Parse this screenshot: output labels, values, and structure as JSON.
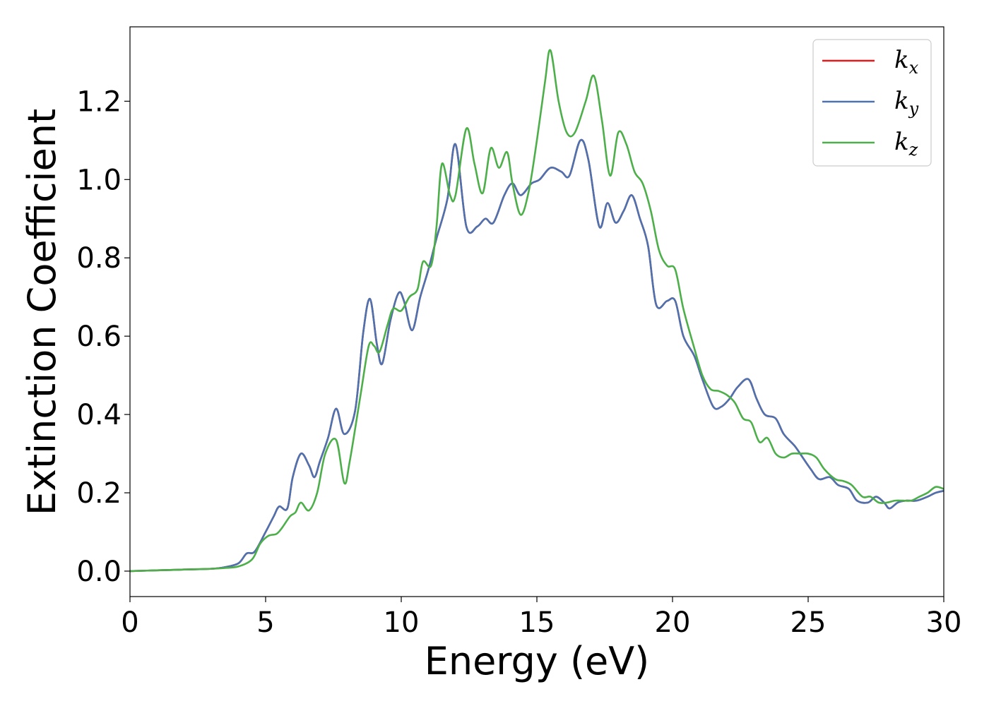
{
  "chart_data": {
    "type": "line",
    "xlabel": "Energy (eV)",
    "ylabel": "Extinction Coefficient",
    "xlim": [
      0,
      30
    ],
    "ylim": [
      -0.065,
      1.39
    ],
    "xticks": [
      0,
      5,
      10,
      15,
      20,
      25,
      30
    ],
    "yticks": [
      0.0,
      0.2,
      0.4,
      0.6,
      0.8,
      1.0,
      1.2
    ],
    "grid": false,
    "legend_position": "top-right",
    "series": [
      {
        "name": "k_x",
        "label_base": "k",
        "label_sub": "x",
        "color": "#e41a1c",
        "x": [
          0,
          1,
          2,
          3,
          3.5,
          4,
          4.3,
          4.6,
          5,
          5.3,
          5.5,
          5.8,
          6.0,
          6.3,
          6.6,
          6.8,
          7.0,
          7.3,
          7.6,
          7.9,
          8.3,
          8.6,
          8.85,
          9.1,
          9.3,
          9.6,
          9.9,
          10.1,
          10.4,
          10.7,
          11.0,
          11.3,
          11.7,
          12.0,
          12.4,
          12.8,
          13.1,
          13.4,
          13.8,
          14.1,
          14.4,
          14.8,
          15.1,
          15.5,
          15.9,
          16.2,
          16.6,
          16.9,
          17.3,
          17.6,
          17.9,
          18.2,
          18.5,
          18.8,
          19.1,
          19.4,
          19.8,
          20.1,
          20.4,
          20.8,
          21.1,
          21.5,
          21.8,
          22.1,
          22.4,
          22.8,
          23.1,
          23.4,
          23.8,
          24.1,
          24.5,
          24.8,
          25.1,
          25.4,
          25.8,
          26.1,
          26.5,
          26.8,
          27.2,
          27.5,
          27.8,
          28.0,
          28.3,
          28.6,
          29.0,
          29.4,
          29.7,
          30.0
        ],
        "y": [
          0.0,
          0.002,
          0.004,
          0.006,
          0.01,
          0.02,
          0.045,
          0.05,
          0.1,
          0.14,
          0.165,
          0.16,
          0.24,
          0.3,
          0.27,
          0.24,
          0.28,
          0.34,
          0.415,
          0.35,
          0.41,
          0.61,
          0.695,
          0.58,
          0.53,
          0.64,
          0.71,
          0.69,
          0.615,
          0.7,
          0.77,
          0.85,
          0.95,
          1.09,
          0.88,
          0.88,
          0.9,
          0.89,
          0.96,
          0.99,
          0.96,
          0.99,
          1.0,
          1.03,
          1.02,
          1.01,
          1.1,
          1.05,
          0.88,
          0.94,
          0.89,
          0.92,
          0.96,
          0.9,
          0.83,
          0.68,
          0.69,
          0.69,
          0.6,
          0.55,
          0.49,
          0.42,
          0.42,
          0.44,
          0.47,
          0.49,
          0.44,
          0.4,
          0.39,
          0.35,
          0.32,
          0.29,
          0.26,
          0.235,
          0.24,
          0.22,
          0.21,
          0.18,
          0.175,
          0.19,
          0.175,
          0.16,
          0.175,
          0.18,
          0.18,
          0.19,
          0.2,
          0.205
        ]
      },
      {
        "name": "k_y",
        "label_base": "k",
        "label_sub": "y",
        "color": "#4c72b0",
        "x": [
          0,
          1,
          2,
          3,
          3.5,
          4,
          4.3,
          4.6,
          5,
          5.3,
          5.5,
          5.8,
          6.0,
          6.3,
          6.6,
          6.8,
          7.0,
          7.3,
          7.6,
          7.9,
          8.3,
          8.6,
          8.85,
          9.1,
          9.3,
          9.6,
          9.9,
          10.1,
          10.4,
          10.7,
          11.0,
          11.3,
          11.7,
          12.0,
          12.4,
          12.8,
          13.1,
          13.4,
          13.8,
          14.1,
          14.4,
          14.8,
          15.1,
          15.5,
          15.9,
          16.2,
          16.6,
          16.9,
          17.3,
          17.6,
          17.9,
          18.2,
          18.5,
          18.8,
          19.1,
          19.4,
          19.8,
          20.1,
          20.4,
          20.8,
          21.1,
          21.5,
          21.8,
          22.1,
          22.4,
          22.8,
          23.1,
          23.4,
          23.8,
          24.1,
          24.5,
          24.8,
          25.1,
          25.4,
          25.8,
          26.1,
          26.5,
          26.8,
          27.2,
          27.5,
          27.8,
          28.0,
          28.3,
          28.6,
          29.0,
          29.4,
          29.7,
          30.0
        ],
        "y": [
          0.0,
          0.002,
          0.004,
          0.006,
          0.01,
          0.02,
          0.045,
          0.05,
          0.1,
          0.14,
          0.165,
          0.16,
          0.24,
          0.3,
          0.27,
          0.24,
          0.28,
          0.34,
          0.415,
          0.35,
          0.41,
          0.61,
          0.695,
          0.58,
          0.53,
          0.64,
          0.71,
          0.69,
          0.615,
          0.7,
          0.77,
          0.85,
          0.95,
          1.09,
          0.88,
          0.88,
          0.9,
          0.89,
          0.96,
          0.99,
          0.96,
          0.99,
          1.0,
          1.03,
          1.02,
          1.01,
          1.1,
          1.05,
          0.88,
          0.94,
          0.89,
          0.92,
          0.96,
          0.9,
          0.83,
          0.68,
          0.69,
          0.69,
          0.6,
          0.55,
          0.49,
          0.42,
          0.42,
          0.44,
          0.47,
          0.49,
          0.44,
          0.4,
          0.39,
          0.35,
          0.32,
          0.29,
          0.26,
          0.235,
          0.24,
          0.22,
          0.21,
          0.18,
          0.175,
          0.19,
          0.175,
          0.16,
          0.175,
          0.18,
          0.18,
          0.19,
          0.2,
          0.205
        ]
      },
      {
        "name": "k_z",
        "label_base": "k",
        "label_sub": "z",
        "color": "#4daf4a",
        "x": [
          0,
          1,
          2,
          3,
          3.5,
          4,
          4.5,
          4.8,
          5.1,
          5.4,
          5.6,
          5.9,
          6.1,
          6.3,
          6.6,
          6.9,
          7.2,
          7.6,
          7.9,
          8.1,
          8.5,
          8.8,
          9.0,
          9.2,
          9.5,
          9.7,
          10.0,
          10.3,
          10.6,
          10.8,
          11.1,
          11.3,
          11.5,
          11.8,
          12.0,
          12.4,
          12.7,
          13.0,
          13.3,
          13.6,
          13.9,
          14.1,
          14.4,
          14.7,
          15.0,
          15.3,
          15.5,
          15.8,
          16.1,
          16.4,
          16.8,
          17.1,
          17.4,
          17.7,
          18.0,
          18.3,
          18.6,
          18.9,
          19.2,
          19.5,
          19.8,
          20.1,
          20.4,
          20.8,
          21.1,
          21.4,
          21.7,
          22.0,
          22.3,
          22.6,
          22.9,
          23.2,
          23.5,
          23.8,
          24.1,
          24.4,
          24.7,
          25.0,
          25.3,
          25.6,
          26.0,
          26.3,
          26.6,
          27.0,
          27.3,
          27.6,
          27.9,
          28.2,
          28.5,
          28.8,
          29.1,
          29.4,
          29.7,
          30.0
        ],
        "y": [
          0.0,
          0.002,
          0.004,
          0.006,
          0.008,
          0.012,
          0.03,
          0.07,
          0.09,
          0.095,
          0.11,
          0.14,
          0.15,
          0.175,
          0.155,
          0.2,
          0.3,
          0.335,
          0.225,
          0.28,
          0.45,
          0.575,
          0.575,
          0.56,
          0.63,
          0.67,
          0.665,
          0.7,
          0.72,
          0.79,
          0.78,
          0.88,
          1.04,
          0.96,
          0.96,
          1.13,
          1.04,
          0.965,
          1.08,
          1.03,
          1.07,
          0.99,
          0.91,
          0.97,
          1.1,
          1.25,
          1.33,
          1.2,
          1.12,
          1.12,
          1.2,
          1.265,
          1.15,
          1.01,
          1.12,
          1.09,
          1.02,
          0.99,
          0.92,
          0.82,
          0.78,
          0.77,
          0.67,
          0.57,
          0.5,
          0.465,
          0.46,
          0.45,
          0.43,
          0.39,
          0.38,
          0.33,
          0.34,
          0.3,
          0.29,
          0.3,
          0.3,
          0.3,
          0.29,
          0.26,
          0.235,
          0.23,
          0.22,
          0.19,
          0.19,
          0.175,
          0.175,
          0.18,
          0.18,
          0.18,
          0.19,
          0.2,
          0.215,
          0.21
        ]
      }
    ]
  }
}
